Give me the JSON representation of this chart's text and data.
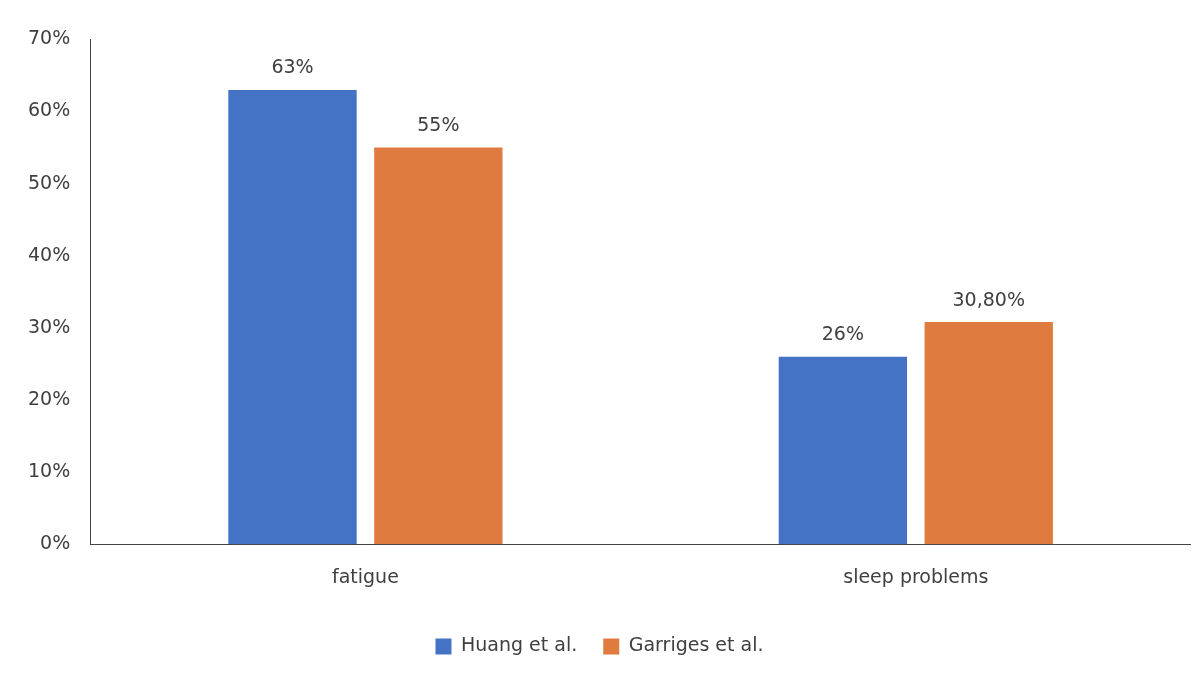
{
  "chart_data": {
    "type": "bar",
    "categories": [
      "fatigue",
      "sleep problems"
    ],
    "series": [
      {
        "name": "Huang et al.",
        "color": "#4472c4",
        "values": [
          63,
          26
        ],
        "value_labels": [
          "63%",
          "26%"
        ]
      },
      {
        "name": "Garriges et al.",
        "color": "#e07b3f",
        "values": [
          55,
          30.8
        ],
        "value_labels": [
          "55%",
          "30,80%"
        ]
      }
    ],
    "ylim": [
      0,
      70
    ],
    "yticks": [
      {
        "value": 0,
        "label": "0%"
      },
      {
        "value": 10,
        "label": "10%"
      },
      {
        "value": 20,
        "label": "20%"
      },
      {
        "value": 30,
        "label": "30%"
      },
      {
        "value": 40,
        "label": "40%"
      },
      {
        "value": 50,
        "label": "50%"
      },
      {
        "value": 60,
        "label": "60%"
      },
      {
        "value": 70,
        "label": "70%"
      }
    ],
    "legend": "bottom"
  }
}
